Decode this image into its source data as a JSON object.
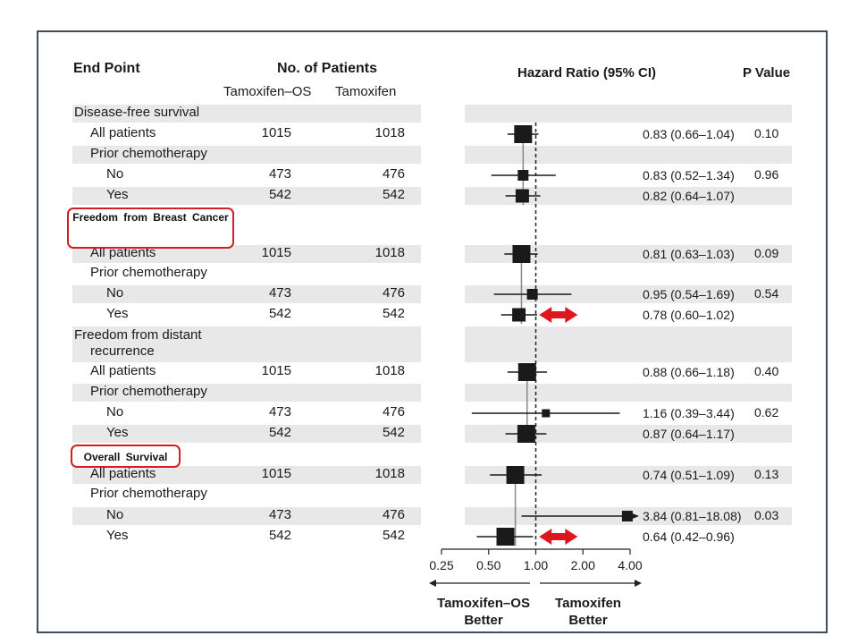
{
  "headers": {
    "end_point": "End Point",
    "no_of_patients": "No. of Patients",
    "group_a": "Tamoxifen–OS",
    "group_b": "Tamoxifen",
    "hazard_ratio": "Hazard Ratio (95% CI)",
    "p_value": "P Value"
  },
  "callouts": {
    "breast_cancer": "Freedom  from Breast Cancer",
    "overall_survival": "Overall Survival"
  },
  "rows": [
    {
      "label": "Disease-free survival",
      "indent": 0,
      "a": "",
      "b": "",
      "hr": "",
      "p": ""
    },
    {
      "label": "All patients",
      "indent": 1,
      "a": "1015",
      "b": "1018",
      "hr": "0.83 (0.66–1.04)",
      "p": "0.10"
    },
    {
      "label": "Prior chemotherapy",
      "indent": 1,
      "a": "",
      "b": "",
      "hr": "",
      "p": ""
    },
    {
      "label": "No",
      "indent": 2,
      "a": "473",
      "b": "476",
      "hr": "0.83 (0.52–1.34)",
      "p": "0.96"
    },
    {
      "label": "Yes",
      "indent": 2,
      "a": "542",
      "b": "542",
      "hr": "0.82 (0.64–1.07)",
      "p": ""
    },
    {
      "label": "",
      "indent": 0,
      "a": "",
      "b": "",
      "hr": "",
      "p": ""
    },
    {
      "label": "All patients",
      "indent": 1,
      "a": "1015",
      "b": "1018",
      "hr": "0.81 (0.63–1.03)",
      "p": "0.09"
    },
    {
      "label": "Prior chemotherapy",
      "indent": 1,
      "a": "",
      "b": "",
      "hr": "",
      "p": ""
    },
    {
      "label": "No",
      "indent": 2,
      "a": "473",
      "b": "476",
      "hr": "0.95 (0.54–1.69)",
      "p": "0.54"
    },
    {
      "label": "Yes",
      "indent": 2,
      "a": "542",
      "b": "542",
      "hr": "0.78 (0.60–1.02)",
      "p": ""
    },
    {
      "label": "Freedom from distant",
      "label2": "recurrence",
      "indent": 0,
      "a": "",
      "b": "",
      "hr": "",
      "p": ""
    },
    {
      "label": "All patients",
      "indent": 1,
      "a": "1015",
      "b": "1018",
      "hr": "0.88 (0.66–1.18)",
      "p": "0.40"
    },
    {
      "label": "Prior chemotherapy",
      "indent": 1,
      "a": "",
      "b": "",
      "hr": "",
      "p": ""
    },
    {
      "label": "No",
      "indent": 2,
      "a": "473",
      "b": "476",
      "hr": "1.16 (0.39–3.44)",
      "p": "0.62"
    },
    {
      "label": "Yes",
      "indent": 2,
      "a": "542",
      "b": "542",
      "hr": "0.87 (0.64–1.17)",
      "p": ""
    },
    {
      "label": "",
      "indent": 0,
      "a": "",
      "b": "",
      "hr": "",
      "p": ""
    },
    {
      "label": "All patients",
      "indent": 1,
      "a": "1015",
      "b": "1018",
      "hr": "0.74 (0.51–1.09)",
      "p": "0.13"
    },
    {
      "label": "Prior chemotherapy",
      "indent": 1,
      "a": "",
      "b": "",
      "hr": "",
      "p": ""
    },
    {
      "label": "No",
      "indent": 2,
      "a": "473",
      "b": "476",
      "hr": "3.84 (0.81–18.08)",
      "p": "0.03"
    },
    {
      "label": "Yes",
      "indent": 2,
      "a": "542",
      "b": "542",
      "hr": "0.64 (0.42–0.96)",
      "p": ""
    }
  ],
  "chart_data": {
    "type": "scatter",
    "xscale": "log",
    "xlim": [
      0.25,
      4.0
    ],
    "xticks": [
      "0.25",
      "0.50",
      "1.00",
      "2.00",
      "4.00"
    ],
    "reference_line": 1.0,
    "left_label": "Tamoxifen–OS Better",
    "right_label": "Tamoxifen Better",
    "groups": [
      {
        "rows": [
          1,
          3,
          4
        ],
        "overall_hr": 0.83
      },
      {
        "rows": [
          6,
          8,
          9
        ],
        "overall_hr": 0.81
      },
      {
        "rows": [
          11,
          13,
          14
        ],
        "overall_hr": 0.88
      },
      {
        "rows": [
          16,
          18,
          19
        ],
        "overall_hr": 0.74
      }
    ],
    "points": [
      {
        "row": 1,
        "hr": 0.83,
        "lo": 0.66,
        "hi": 1.04,
        "weight": "large"
      },
      {
        "row": 3,
        "hr": 0.83,
        "lo": 0.52,
        "hi": 1.34,
        "weight": "small"
      },
      {
        "row": 4,
        "hr": 0.82,
        "lo": 0.64,
        "hi": 1.07,
        "weight": "medium"
      },
      {
        "row": 6,
        "hr": 0.81,
        "lo": 0.63,
        "hi": 1.03,
        "weight": "large"
      },
      {
        "row": 8,
        "hr": 0.95,
        "lo": 0.54,
        "hi": 1.69,
        "weight": "small"
      },
      {
        "row": 9,
        "hr": 0.78,
        "lo": 0.6,
        "hi": 1.02,
        "weight": "medium"
      },
      {
        "row": 11,
        "hr": 0.88,
        "lo": 0.66,
        "hi": 1.18,
        "weight": "large"
      },
      {
        "row": 13,
        "hr": 1.16,
        "lo": 0.39,
        "hi": 3.44,
        "weight": "tiny"
      },
      {
        "row": 14,
        "hr": 0.87,
        "lo": 0.64,
        "hi": 1.17,
        "weight": "large"
      },
      {
        "row": 16,
        "hr": 0.74,
        "lo": 0.51,
        "hi": 1.09,
        "weight": "large"
      },
      {
        "row": 18,
        "hr": 3.84,
        "lo": 0.81,
        "hi": 18.08,
        "weight": "small",
        "arrow": true
      },
      {
        "row": 19,
        "hr": 0.64,
        "lo": 0.42,
        "hi": 0.96,
        "weight": "large"
      }
    ],
    "highlight_arrows": [
      {
        "row": 9,
        "from": 1.05,
        "to": 1.85
      },
      {
        "row": 19,
        "from": 1.05,
        "to": 1.85
      }
    ],
    "colors": {
      "marker": "#1a1a1a",
      "highlight": "#e0161f",
      "stripe": "#e8e8e8"
    }
  }
}
